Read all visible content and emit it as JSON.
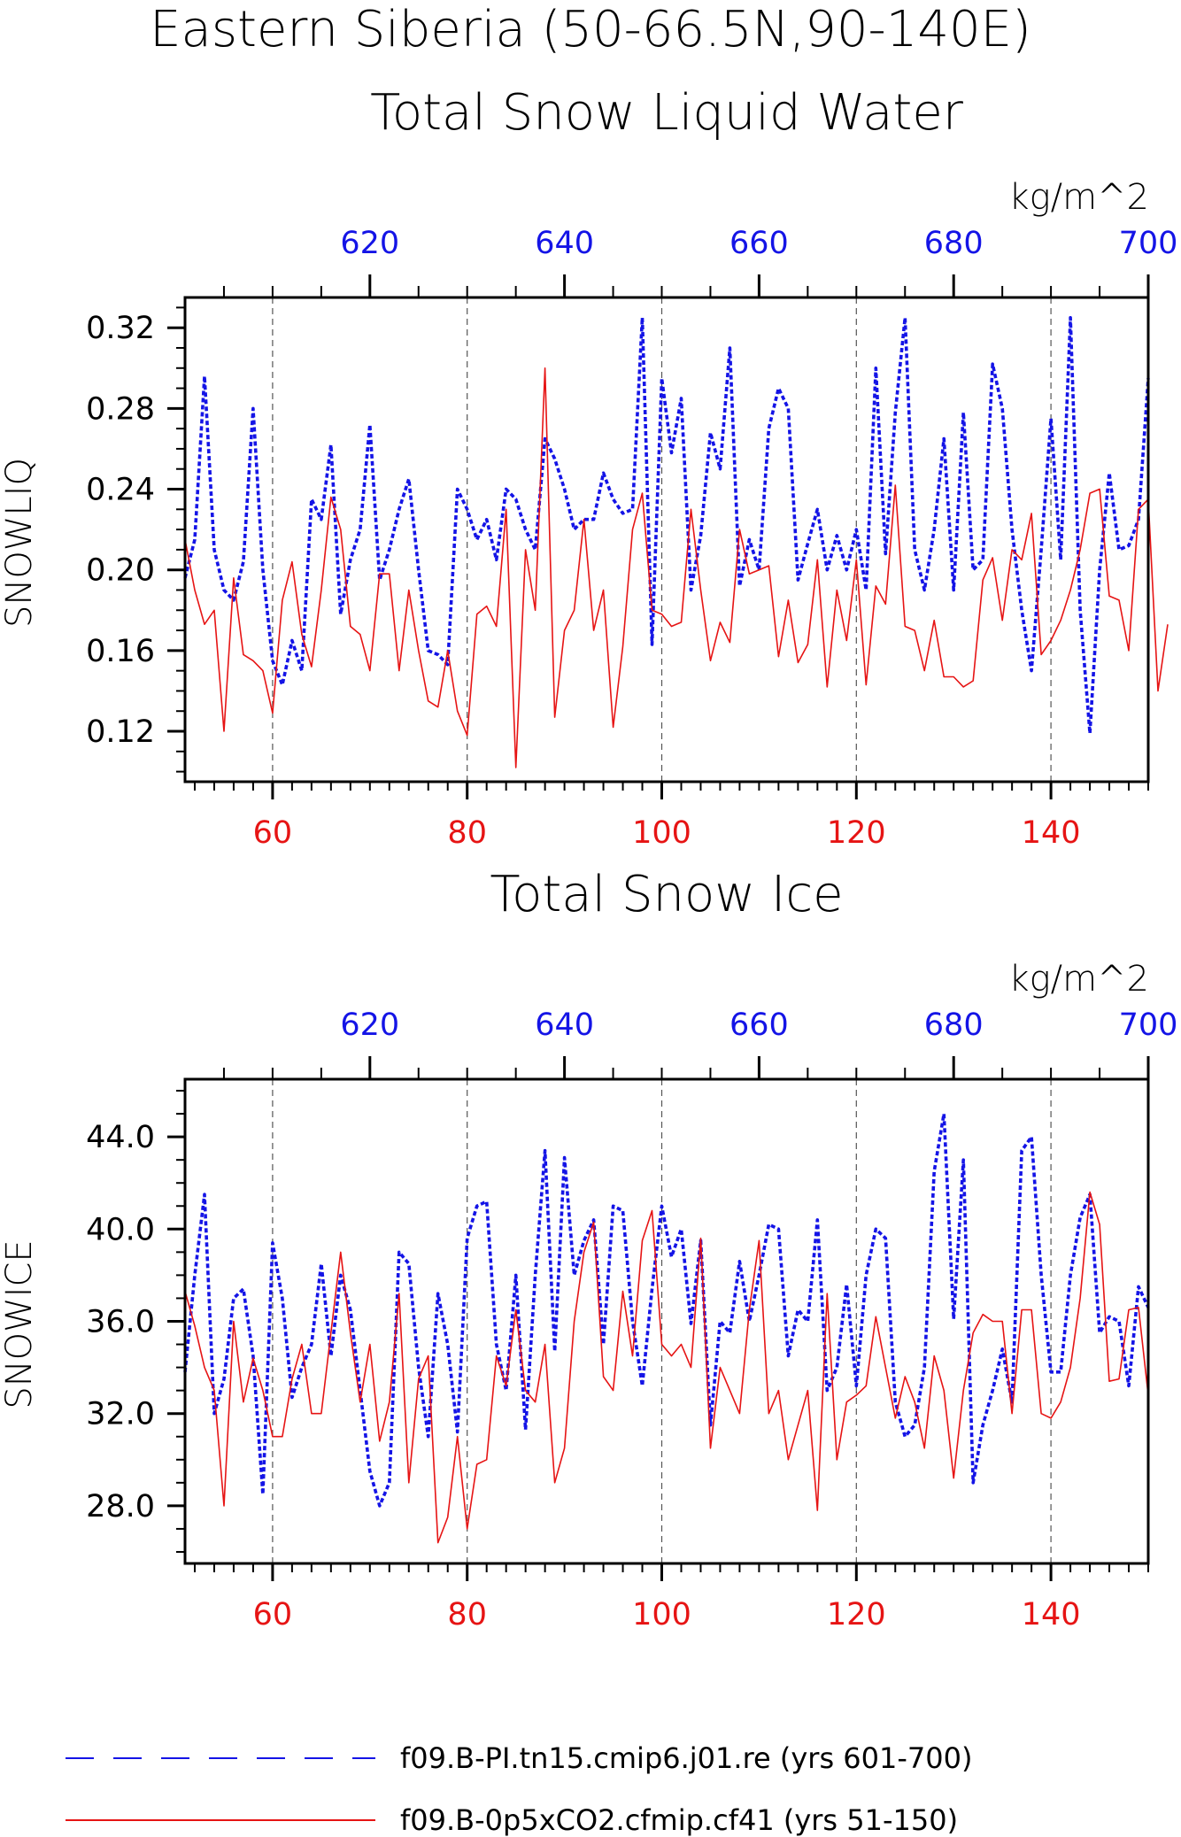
{
  "title": {
    "line1": "Eastern Siberia (50-66.5N,90-140E)",
    "line2": "Total Snow Liquid Water"
  },
  "colors": {
    "series_a": "#1414e6",
    "series_b": "#e61414",
    "grid": "#555555"
  },
  "legend": [
    {
      "label": "f09.B-PI.tn15.cmip6.j01.re (yrs 601-700)",
      "color": "#1414e6",
      "style": "dashed"
    },
    {
      "label": "f09.B-0p5xCO2.cfmip.cf41 (yrs 51-150)",
      "color": "#e61414",
      "style": "solid"
    }
  ],
  "chart_data": [
    {
      "type": "line",
      "title": "Total Snow Liquid Water",
      "units": "kg/m^2",
      "ylabel": "SNOWLIQ",
      "ylim": [
        0.095,
        0.335
      ],
      "yticks": [
        0.12,
        0.16,
        0.2,
        0.24,
        0.28,
        0.32
      ],
      "ytick_labels": [
        "0.12",
        "0.16",
        "0.20",
        "0.24",
        "0.28",
        "0.32"
      ],
      "x_bottom": {
        "lim": [
          51,
          150
        ],
        "ticks": [
          60,
          80,
          100,
          120,
          140
        ],
        "color": "#e61414"
      },
      "x_top": {
        "lim": [
          601,
          700
        ],
        "ticks": [
          620,
          640,
          660,
          680,
          700
        ],
        "color": "#1414e6"
      },
      "grid": "vertical-dashed",
      "series": [
        {
          "name": "f09.B-PI.tn15.cmip6.j01.re (yrs 601-700)",
          "axis": "top",
          "x_start": 601,
          "style": "dashed",
          "color": "#1414e6",
          "values": [
            0.196,
            0.215,
            0.296,
            0.21,
            0.19,
            0.185,
            0.204,
            0.28,
            0.2,
            0.155,
            0.143,
            0.165,
            0.15,
            0.235,
            0.225,
            0.262,
            0.178,
            0.205,
            0.22,
            0.272,
            0.195,
            0.21,
            0.23,
            0.245,
            0.2,
            0.16,
            0.158,
            0.153,
            0.24,
            0.23,
            0.215,
            0.225,
            0.205,
            0.24,
            0.235,
            0.22,
            0.21,
            0.265,
            0.255,
            0.24,
            0.22,
            0.225,
            0.225,
            0.248,
            0.235,
            0.228,
            0.23,
            0.325,
            0.163,
            0.295,
            0.258,
            0.285,
            0.19,
            0.217,
            0.268,
            0.25,
            0.31,
            0.192,
            0.215,
            0.2,
            0.27,
            0.29,
            0.28,
            0.195,
            0.213,
            0.23,
            0.2,
            0.217,
            0.2,
            0.22,
            0.19,
            0.3,
            0.208,
            0.278,
            0.325,
            0.21,
            0.19,
            0.22,
            0.265,
            0.19,
            0.278,
            0.2,
            0.205,
            0.302,
            0.28,
            0.22,
            0.18,
            0.15,
            0.21,
            0.275,
            0.205,
            0.325,
            0.18,
            0.119,
            0.2,
            0.248,
            0.21,
            0.212,
            0.225,
            0.295
          ]
        },
        {
          "name": "f09.B-0p5xCO2.cfmip.cf41 (yrs 51-150)",
          "axis": "bottom",
          "x_start": 51,
          "style": "solid",
          "color": "#e61414",
          "values": [
            0.215,
            0.19,
            0.173,
            0.18,
            0.12,
            0.196,
            0.158,
            0.155,
            0.15,
            0.129,
            0.185,
            0.204,
            0.168,
            0.152,
            0.19,
            0.236,
            0.22,
            0.172,
            0.168,
            0.15,
            0.198,
            0.198,
            0.15,
            0.19,
            0.16,
            0.135,
            0.132,
            0.16,
            0.13,
            0.118,
            0.178,
            0.182,
            0.172,
            0.23,
            0.102,
            0.21,
            0.18,
            0.3,
            0.127,
            0.17,
            0.18,
            0.225,
            0.17,
            0.19,
            0.122,
            0.162,
            0.22,
            0.238,
            0.18,
            0.178,
            0.172,
            0.174,
            0.23,
            0.19,
            0.155,
            0.174,
            0.164,
            0.22,
            0.198,
            0.2,
            0.202,
            0.157,
            0.185,
            0.154,
            0.163,
            0.205,
            0.142,
            0.19,
            0.165,
            0.205,
            0.143,
            0.192,
            0.183,
            0.242,
            0.172,
            0.17,
            0.15,
            0.175,
            0.147,
            0.147,
            0.142,
            0.145,
            0.195,
            0.206,
            0.175,
            0.21,
            0.205,
            0.228,
            0.158,
            0.165,
            0.175,
            0.19,
            0.21,
            0.238,
            0.24,
            0.187,
            0.185,
            0.16,
            0.23,
            0.235,
            0.14,
            0.173
          ]
        }
      ]
    },
    {
      "type": "line",
      "title": "Total Snow Ice",
      "units": "kg/m^2",
      "ylabel": "SNOWICE",
      "ylim": [
        25.5,
        46.5
      ],
      "yticks": [
        28.0,
        32.0,
        36.0,
        40.0,
        44.0
      ],
      "ytick_labels": [
        "28.0",
        "32.0",
        "36.0",
        "40.0",
        "44.0"
      ],
      "x_bottom": {
        "lim": [
          51,
          150
        ],
        "ticks": [
          60,
          80,
          100,
          120,
          140
        ],
        "color": "#e61414"
      },
      "x_top": {
        "lim": [
          601,
          700
        ],
        "ticks": [
          620,
          640,
          660,
          680,
          700
        ],
        "color": "#1414e6"
      },
      "grid": "vertical-dashed",
      "series": [
        {
          "name": "f09.B-PI.tn15.cmip6.j01.re (yrs 601-700)",
          "axis": "top",
          "x_start": 601,
          "style": "dashed",
          "color": "#1414e6",
          "values": [
            33.8,
            38.0,
            41.5,
            32.0,
            33.5,
            37.0,
            37.4,
            34.5,
            28.5,
            39.4,
            37.0,
            32.7,
            34.0,
            35.0,
            38.5,
            34.5,
            38.0,
            36.5,
            33.0,
            29.5,
            28.0,
            29.0,
            39.0,
            38.5,
            34.0,
            31.0,
            37.2,
            35.0,
            31.2,
            39.6,
            41.0,
            41.2,
            35.0,
            33.0,
            38.0,
            31.3,
            38.0,
            43.4,
            34.7,
            43.1,
            38.0,
            39.5,
            40.4,
            35.0,
            41.0,
            40.8,
            36.0,
            33.2,
            37.4,
            41.0,
            38.8,
            40.0,
            35.9,
            39.5,
            31.5,
            36.0,
            35.5,
            38.6,
            36.0,
            38.0,
            40.2,
            40.0,
            34.5,
            36.5,
            36.0,
            40.4,
            33.0,
            34.0,
            37.6,
            33.2,
            38.0,
            40.0,
            39.6,
            32.5,
            31.0,
            31.5,
            34.0,
            42.5,
            45.0,
            36.1,
            43.0,
            29.0,
            31.5,
            33.0,
            34.8,
            32.5,
            43.4,
            44.0,
            38.0,
            33.8,
            33.8,
            38.0,
            40.5,
            41.5,
            35.5,
            36.2,
            36.0,
            33.2,
            37.5,
            36.6
          ]
        },
        {
          "name": "f09.B-0p5xCO2.cfmip.cf41 (yrs 51-150)",
          "axis": "bottom",
          "x_start": 51,
          "style": "solid",
          "color": "#e61414",
          "values": [
            37.3,
            35.8,
            34.0,
            33.0,
            28.0,
            36.0,
            32.5,
            34.4,
            33.0,
            31.0,
            31.0,
            33.5,
            35.0,
            32.0,
            32.0,
            35.5,
            39.0,
            35.5,
            32.5,
            35.0,
            30.8,
            32.5,
            37.2,
            29.0,
            33.5,
            34.5,
            26.4,
            27.5,
            31.0,
            27.0,
            29.8,
            30.0,
            34.5,
            33.2,
            36.5,
            33.0,
            32.5,
            35.0,
            29.0,
            30.5,
            36.0,
            39.0,
            40.3,
            33.6,
            33.0,
            37.3,
            34.5,
            39.5,
            40.8,
            35.0,
            34.5,
            35.0,
            34.0,
            39.6,
            30.5,
            34.0,
            33.0,
            32.0,
            36.5,
            39.5,
            32.0,
            33.0,
            30.0,
            31.5,
            33.0,
            27.8,
            37.2,
            30.0,
            32.5,
            32.8,
            33.2,
            36.2,
            34.0,
            31.8,
            33.6,
            32.5,
            30.5,
            34.5,
            33.0,
            29.2,
            33.0,
            35.5,
            36.3,
            36.0,
            36.0,
            32.0,
            36.5,
            36.5,
            32.0,
            31.8,
            32.5,
            34.0,
            37.0,
            41.6,
            40.2,
            33.4,
            33.5,
            36.5,
            36.6,
            32.8
          ]
        }
      ]
    }
  ]
}
